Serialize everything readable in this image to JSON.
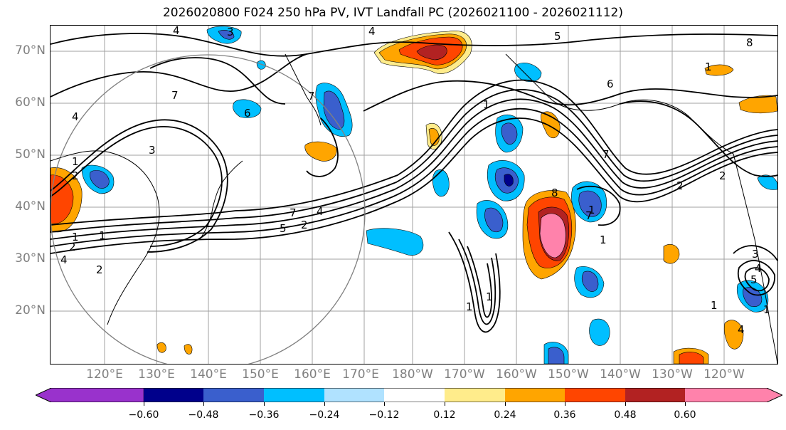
{
  "title": "2026020800 F024 250 hPa PV, IVT Landfall PC (2026021100 - 2026021112)",
  "map": {
    "lat_labels": [
      "70°N",
      "60°N",
      "50°N",
      "40°N",
      "30°N",
      "20°N"
    ],
    "lon_labels": [
      "120°E",
      "130°E",
      "140°E",
      "150°E",
      "160°E",
      "170°E",
      "180°W",
      "170°W",
      "160°W",
      "150°W",
      "140°W",
      "130°W",
      "120°W"
    ],
    "contour_labels": [
      "4",
      "3",
      "4",
      "5",
      "8",
      "1",
      "6",
      "7",
      "6",
      "4",
      "1",
      "2",
      "1",
      "4",
      "2",
      "1",
      "2",
      "3",
      "7",
      "2",
      "4",
      "5",
      "7",
      "1",
      "1",
      "1",
      "1",
      "2",
      "3",
      "4",
      "5",
      "1",
      "2",
      "1",
      "4",
      "7",
      "7",
      "8",
      "1"
    ]
  },
  "colorbar": {
    "tick_labels": [
      "−0.60",
      "−0.48",
      "−0.36",
      "−0.24",
      "−0.12",
      "0.12",
      "0.24",
      "0.36",
      "0.48",
      "0.60"
    ],
    "colors": [
      "#9932CC",
      "#00008B",
      "#3A5FCD",
      "#00BFFF",
      "#B0E2FF",
      "#FFFFFF",
      "#FFEC8B",
      "#FFA500",
      "#FF4500",
      "#B22222",
      "#FF82AB"
    ]
  }
}
